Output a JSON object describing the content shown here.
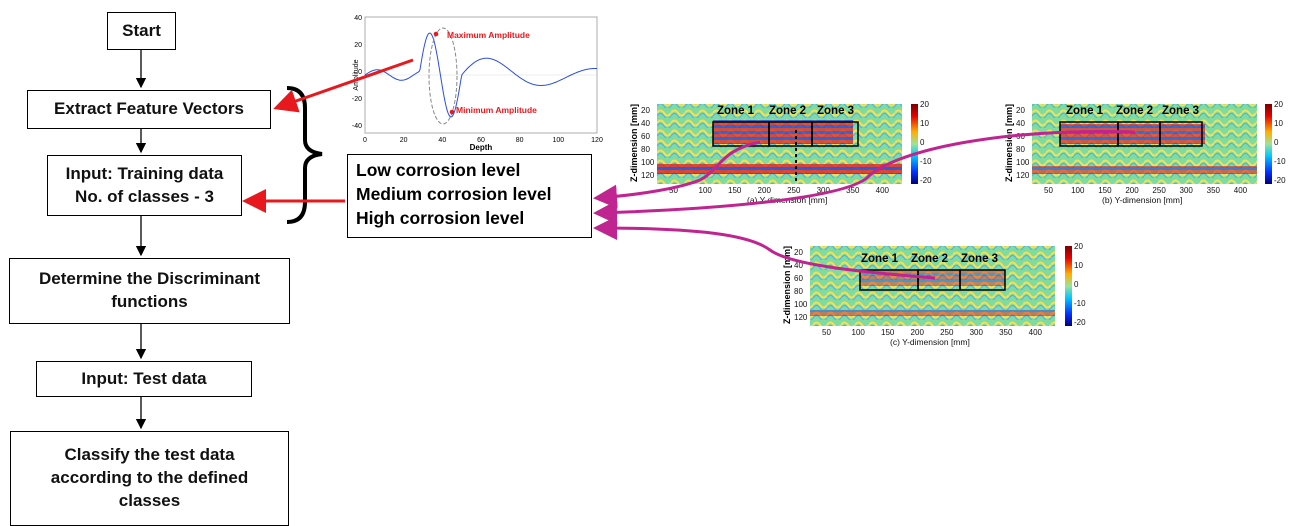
{
  "flowchart": {
    "start": "Start",
    "extract": "Extract Feature Vectors",
    "training_line1": "Input: Training data",
    "training_line2": "No. of classes - 3",
    "discriminant_line1": "Determine the Discriminant",
    "discriminant_line2": "functions",
    "test": "Input: Test data",
    "classify_line1": "Classify the test data",
    "classify_line2": "according to the defined",
    "classify_line3": "classes"
  },
  "classes": {
    "low": "Low corrosion level",
    "medium": "Medium corrosion level",
    "high": "High corrosion level"
  },
  "signal_plot": {
    "max_label": "Maximum Amplitude",
    "min_label": "Minimum Amplitude",
    "xlabel": "Depth",
    "ylabel": "Amplitude",
    "x_ticks": [
      "0",
      "20",
      "40",
      "60",
      "80",
      "100",
      "120"
    ],
    "y_ticks": [
      "40",
      "20",
      "0",
      "-20",
      "-40"
    ]
  },
  "images": {
    "ylabel": "Z-dimension [mm]",
    "y_ticks": [
      "20",
      "40",
      "60",
      "80",
      "100",
      "120"
    ],
    "x_ticks": [
      "50",
      "100",
      "150",
      "200",
      "250",
      "300",
      "350",
      "400"
    ],
    "colorbar_ticks": [
      "20",
      "10",
      "0",
      "-10",
      "-20"
    ],
    "zones": [
      "Zone 1",
      "Zone 2",
      "Zone 3"
    ],
    "xlabel_a": "(a) Y-dimension [mm]",
    "xlabel_b": "(b) Y-dimension [mm]",
    "xlabel_c": "(c) Y-dimension [mm]"
  },
  "colors": {
    "arrow_red": "#e8191e",
    "connector_magenta": "#c02490",
    "signal_blue": "#2a4ee0"
  }
}
